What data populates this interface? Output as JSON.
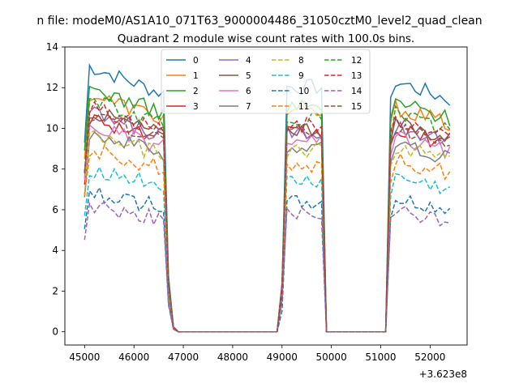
{
  "chart_data": {
    "type": "line",
    "suptitle": "n file: modeM0/AS1A10_071T63_9000004486_31050cztM0_level2_quad_clean",
    "title": "Quadrant 2 module wise count rates with 100.0s bins.",
    "xlabel": "",
    "ylabel": "",
    "offset_label": "+3.623e8",
    "xlim": [
      44600,
      52750
    ],
    "ylim": [
      -0.65,
      14.0
    ],
    "xticks": [
      45000,
      46000,
      47000,
      48000,
      49000,
      50000,
      51000,
      52000
    ],
    "yticks": [
      0,
      2,
      4,
      6,
      8,
      10,
      12,
      14
    ],
    "grid": false,
    "legend_position": "upper-center",
    "segments": [
      {
        "x_start": 45000,
        "x_end": 46650,
        "type": "active"
      },
      {
        "x_start": 46700,
        "x_end": 46800,
        "type": "drop"
      },
      {
        "x_start": 46900,
        "x_end": 48900,
        "type": "zero"
      },
      {
        "x_start": 49000,
        "x_end": 49800,
        "type": "active"
      },
      {
        "x_start": 49900,
        "x_end": 51100,
        "type": "zero"
      },
      {
        "x_start": 51200,
        "x_end": 52400,
        "type": "active"
      }
    ],
    "series": [
      {
        "name": "0",
        "color": "#1f77b4",
        "dash": "solid",
        "level": 12.4
      },
      {
        "name": "1",
        "color": "#ff7f0e",
        "dash": "solid",
        "level": 11.1
      },
      {
        "name": "2",
        "color": "#2ca02c",
        "dash": "solid",
        "level": 11.4
      },
      {
        "name": "3",
        "color": "#d62728",
        "dash": "solid",
        "level": 10.0
      },
      {
        "name": "4",
        "color": "#9467bd",
        "dash": "solid",
        "level": 10.2
      },
      {
        "name": "5",
        "color": "#8c564b",
        "dash": "solid",
        "level": 10.3
      },
      {
        "name": "6",
        "color": "#e377c2",
        "dash": "solid",
        "level": 9.6
      },
      {
        "name": "7",
        "color": "#7f7f7f",
        "dash": "solid",
        "level": 9.3
      },
      {
        "name": "8",
        "color": "#bcbd22",
        "dash": "dashed",
        "level": 9.2
      },
      {
        "name": "9",
        "color": "#17becf",
        "dash": "dashed",
        "level": 7.6
      },
      {
        "name": "10",
        "color": "#1f77b4",
        "dash": "dashed",
        "level": 6.5
      },
      {
        "name": "11",
        "color": "#ff7f0e",
        "dash": "dashed",
        "level": 8.5
      },
      {
        "name": "12",
        "color": "#2ca02c",
        "dash": "dashed",
        "level": 10.8
      },
      {
        "name": "13",
        "color": "#d62728",
        "dash": "dashed",
        "level": 10.5
      },
      {
        "name": "14",
        "color": "#9467bd",
        "dash": "dashed",
        "level": 5.9
      },
      {
        "name": "15",
        "color": "#8c564b",
        "dash": "dashed",
        "level": 10.1
      }
    ]
  }
}
